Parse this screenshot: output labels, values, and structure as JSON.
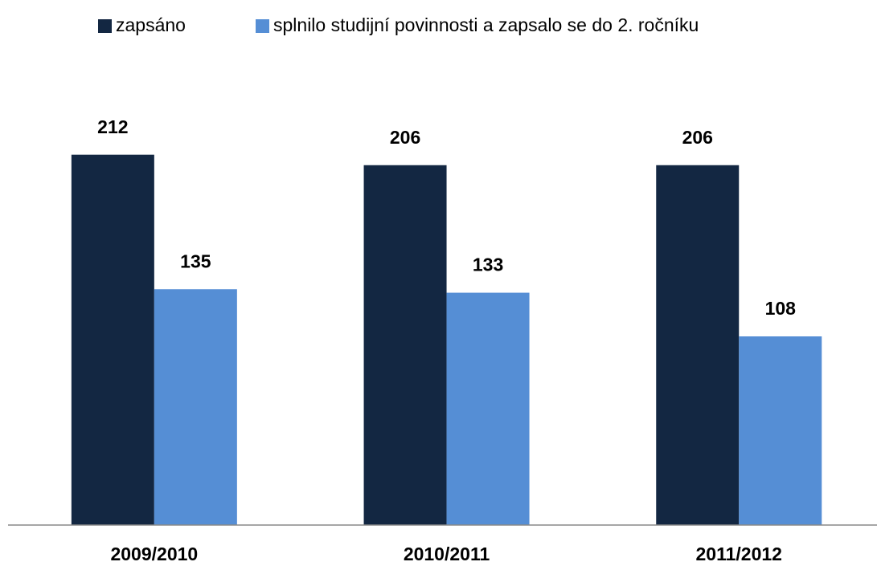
{
  "chart_data": {
    "type": "bar",
    "categories": [
      "2009/2010",
      "2010/2011",
      "2011/2012"
    ],
    "series": [
      {
        "name": "zapsáno",
        "color": "#132742",
        "values": [
          212,
          206,
          206
        ]
      },
      {
        "name": "splnilo studijní povinnosti a zapsalo se do 2. ročníku",
        "color": "#558ed5",
        "values": [
          135,
          133,
          108
        ]
      }
    ],
    "ylim": [
      0,
      250
    ],
    "legend": "top"
  }
}
